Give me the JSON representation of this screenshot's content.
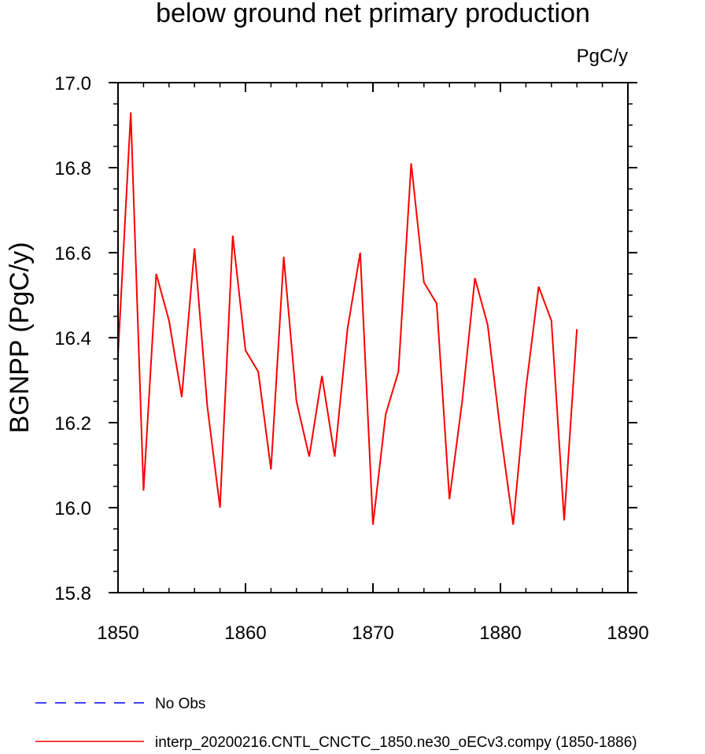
{
  "chart_data": {
    "type": "line",
    "title": "below ground net primary production",
    "units_label": "PgC/y",
    "xlabel": "",
    "ylabel": "BGNPP  (PgC/y)",
    "xlim": [
      1850,
      1890
    ],
    "ylim": [
      15.8,
      17.0
    ],
    "x_ticks": [
      1850,
      1860,
      1870,
      1880,
      1890
    ],
    "x_tick_labels": [
      "1850",
      "1860",
      "1870",
      "1880",
      "1890"
    ],
    "y_ticks": [
      15.8,
      16.0,
      16.2,
      16.4,
      16.6,
      16.8,
      17.0
    ],
    "y_tick_labels": [
      "15.8",
      "16.0",
      "16.2",
      "16.4",
      "16.6",
      "16.8",
      "17.0"
    ],
    "grid": false,
    "legend_position": "bottom",
    "series": [
      {
        "name": "interp_20200216.CNTL_CNCTC_1850.ne30_oECv3.compy (1850-1886)",
        "color": "#ff0000",
        "style": "solid",
        "x": [
          1850,
          1851,
          1852,
          1853,
          1854,
          1855,
          1856,
          1857,
          1858,
          1859,
          1860,
          1861,
          1862,
          1863,
          1864,
          1865,
          1866,
          1867,
          1868,
          1869,
          1870,
          1871,
          1872,
          1873,
          1874,
          1875,
          1876,
          1877,
          1878,
          1879,
          1880,
          1881,
          1882,
          1883,
          1884,
          1885,
          1886
        ],
        "values": [
          16.36,
          16.93,
          16.04,
          16.55,
          16.44,
          16.26,
          16.61,
          16.24,
          16.0,
          16.64,
          16.37,
          16.32,
          16.09,
          16.59,
          16.25,
          16.12,
          16.31,
          16.12,
          16.42,
          16.6,
          15.96,
          16.22,
          16.32,
          16.81,
          16.53,
          16.48,
          16.02,
          16.25,
          16.54,
          16.43,
          16.18,
          15.96,
          16.28,
          16.52,
          16.44,
          15.97,
          16.42
        ]
      }
    ],
    "legend": [
      {
        "label": "No Obs",
        "color": "#0000ff",
        "style": "dashed"
      },
      {
        "label": "interp_20200216.CNTL_CNCTC_1850.ne30_oECv3.compy (1850-1886)",
        "color": "#ff0000",
        "style": "solid"
      }
    ]
  }
}
